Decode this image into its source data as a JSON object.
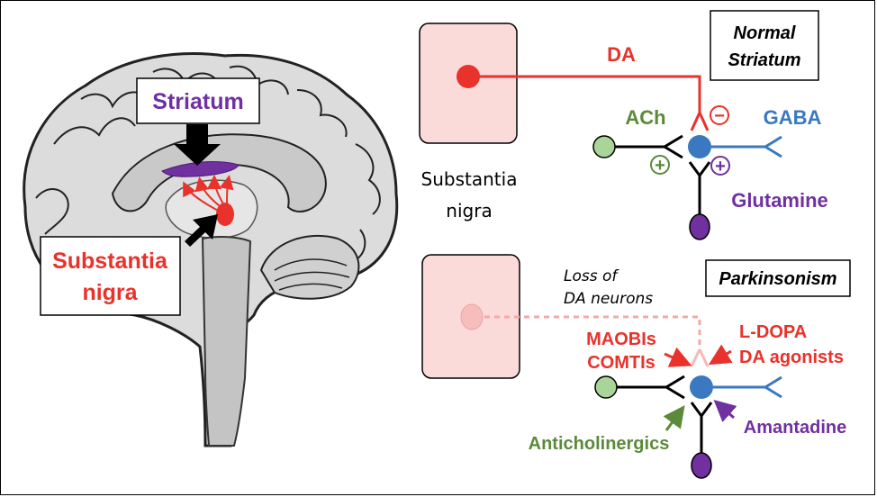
{
  "brain": {
    "striatum_label": "Striatum",
    "substantia_label_line1": "Substantia",
    "substantia_label_line2": "nigra"
  },
  "normal": {
    "panel_title_line1": "Normal",
    "panel_title_line2": "Striatum",
    "da_label": "DA",
    "ach_label": "ACh",
    "gaba_label": "GABA",
    "glutamine_label": "Glutamine",
    "minus_sign": "−",
    "plus_sign": "+",
    "sn_caption_line1": "Substantia",
    "sn_caption_line2": "nigra"
  },
  "parkinson": {
    "panel_title": "Parkinsonism",
    "loss_line1": "Loss of",
    "loss_line2": "DA neurons",
    "ldopa_label": "L-DOPA",
    "da_agonists_label": "DA agonists",
    "maobis_label": "MAOBIs",
    "comtis_label": "COMTIs",
    "anticholinergics_label": "Anticholinergics",
    "amantadine_label": "Amantadine"
  },
  "colors": {
    "red": "#e8322b",
    "purple": "#7030a0",
    "green": "#5a8a3a",
    "blue": "#3a78c0",
    "pink_box": "#fbdada"
  }
}
